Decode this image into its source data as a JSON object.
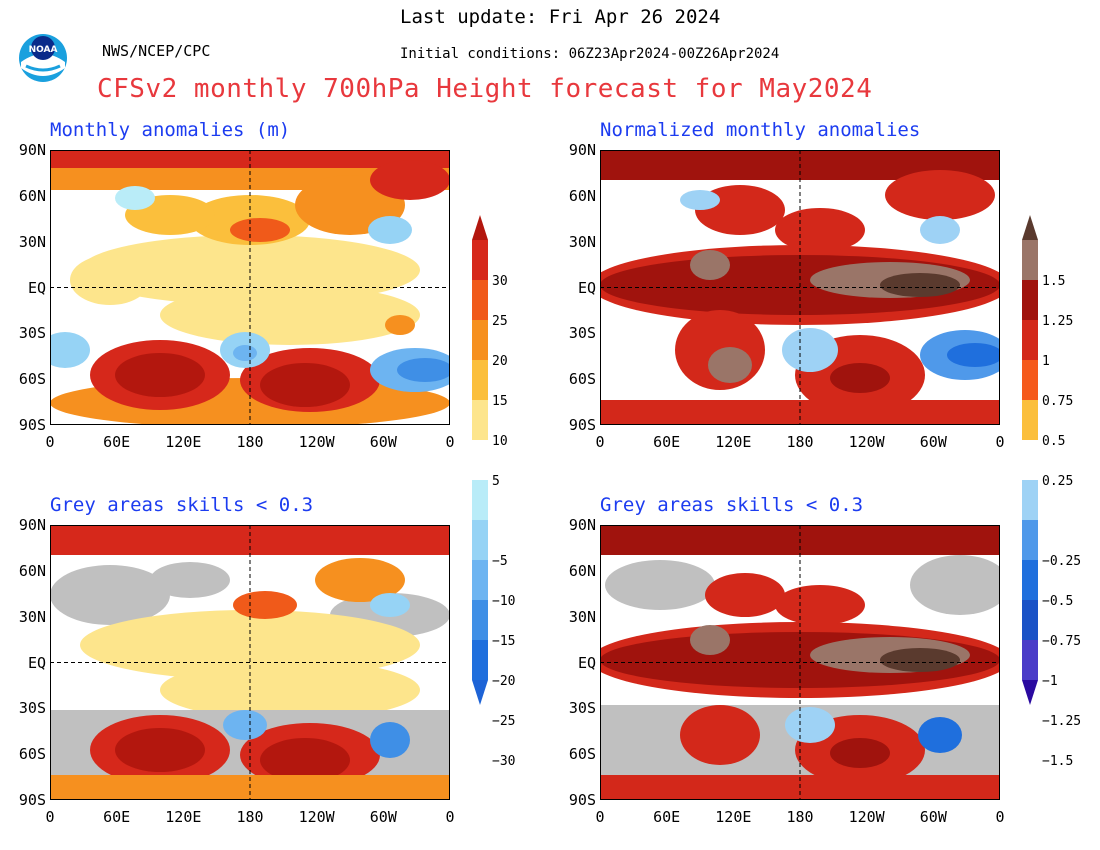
{
  "header": {
    "last_update": "Last update: Fri Apr 26 2024",
    "org": "NWS/NCEP/CPC",
    "initial_conditions": "Initial conditions: 06Z23Apr2024-00Z26Apr2024",
    "title": "CFSv2 monthly 700hPa Height forecast for May2024",
    "logo_text": "NOAA",
    "logo_icon": "noaa-logo-icon"
  },
  "panels": {
    "top_left": {
      "title": "Monthly anomalies (m)"
    },
    "top_right": {
      "title": "Normalized monthly anomalies"
    },
    "bottom_left": {
      "title": "Grey areas skills < 0.3"
    },
    "bottom_right": {
      "title": "Grey areas skills < 0.3"
    }
  },
  "axes": {
    "lat_ticks": [
      "90N",
      "60N",
      "30N",
      "EQ",
      "30S",
      "60S",
      "90S"
    ],
    "lon_ticks": [
      "0",
      "60E",
      "120E",
      "180",
      "120W",
      "60W",
      "0"
    ]
  },
  "colorbars": {
    "anomaly_m": {
      "labels": [
        "30",
        "25",
        "20",
        "15",
        "10",
        "5",
        "−5",
        "−10",
        "−15",
        "−20",
        "−25",
        "−30"
      ],
      "colors": [
        "#b3170e",
        "#d6281b",
        "#f05a1a",
        "#f6901f",
        "#fbbf3c",
        "#fde58c",
        "#ffffff",
        "#b9ecf8",
        "#96d3f5",
        "#6db4f1",
        "#3f8fe6",
        "#1f6fdd",
        "#1d63d6"
      ]
    },
    "normalized": {
      "labels": [
        "1.5",
        "1.25",
        "1",
        "0.75",
        "0.5",
        "0.25",
        "−0.25",
        "−0.5",
        "−0.75",
        "−1",
        "−1.25",
        "−1.5"
      ],
      "colors": [
        "#5a3a2e",
        "#9a7568",
        "#a0130d",
        "#d3281a",
        "#f55a1b",
        "#fbbf3c",
        "#ffffff",
        "#9ed2f5",
        "#4f99ea",
        "#1f6fdd",
        "#1a52c6",
        "#4a3cc8",
        "#2a0aa0"
      ]
    }
  },
  "colors": {
    "title_red": "#e8383d",
    "panel_title_blue": "#1c3cf0",
    "grey_skill_mask": "#c0c0c0"
  }
}
